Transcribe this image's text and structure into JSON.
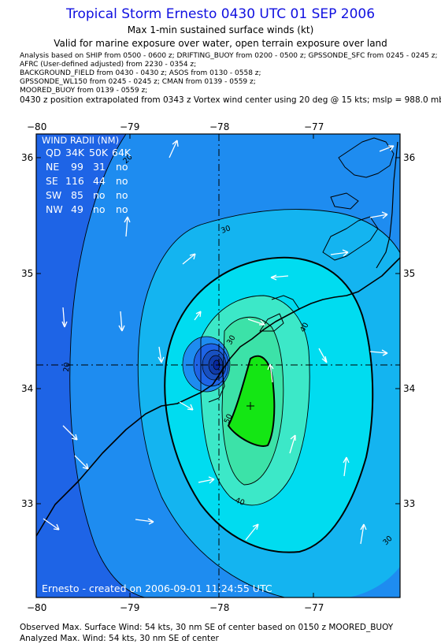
{
  "header": {
    "title": "Tropical Storm Ernesto 0430 UTC 01 SEP 2006",
    "subtitle": "Max 1-min sustained surface winds (kt)",
    "valid_line": "Valid for marine exposure over water, open terrain exposure over land"
  },
  "analysis_info": [
    "Analysis based on   SHIP from 0500 - 0600 z;  DRIFTING_BUOY from 0200 - 0500 z;  GPSSONDE_SFC from 0245 - 0245 z;",
    "AFRC (User-defined adjusted) from 2230 - 0354 z;",
    "BACKGROUND_FIELD from 0430 - 0430 z;  ASOS from 0130 - 0558 z;",
    "GPSSONDE_WL150 from 0245 - 0245 z;  CMAN from 0139 - 0559 z;",
    "MOORED_BUOY from 0139 - 0559 z;"
  ],
  "position_note": "0430 z position extrapolated from 0343 z Vortex wind center using 20 deg @ 15 kts; mslp = 988.0 mb",
  "map": {
    "lon_ticks": [
      "−80",
      "−79",
      "−78",
      "−77"
    ],
    "lat_ticks": [
      "36",
      "35",
      "34",
      "33"
    ],
    "center_lon": -78.0,
    "center_lat": 34.2,
    "contour_labels": [
      "20",
      "20",
      "30",
      "30",
      "40",
      "40",
      "50",
      "30"
    ],
    "credit": "Ernesto - created on 2006-09-01 11:24:55 UTC"
  },
  "wind_radii": {
    "title": "WIND RADII (NM)",
    "header": [
      "QD",
      "34K",
      "50K",
      "64K"
    ],
    "rows": [
      [
        "NE",
        "99",
        "31",
        "no"
      ],
      [
        "SE",
        "116",
        "44",
        "no"
      ],
      [
        "SW",
        "85",
        "no",
        "no"
      ],
      [
        "NW",
        "49",
        "no",
        "no"
      ]
    ]
  },
  "footer": {
    "observed": "Observed Max. Surface Wind: 54 kts, 30 nm SE of center based on 0150 z MOORED_BUOY",
    "analyzed": "Analyzed Max. Wind: 54 kts, 30 nm SE of center"
  },
  "colors": {
    "title": "#1010e0",
    "outer": "#1e64e6",
    "band20": "#1e8cf0",
    "band30": "#14b4f0",
    "band34": "#00dcf0",
    "band40": "#3ce8c8",
    "band45": "#3ce2a8",
    "band50": "#14e614",
    "eye": "#0828a0"
  }
}
